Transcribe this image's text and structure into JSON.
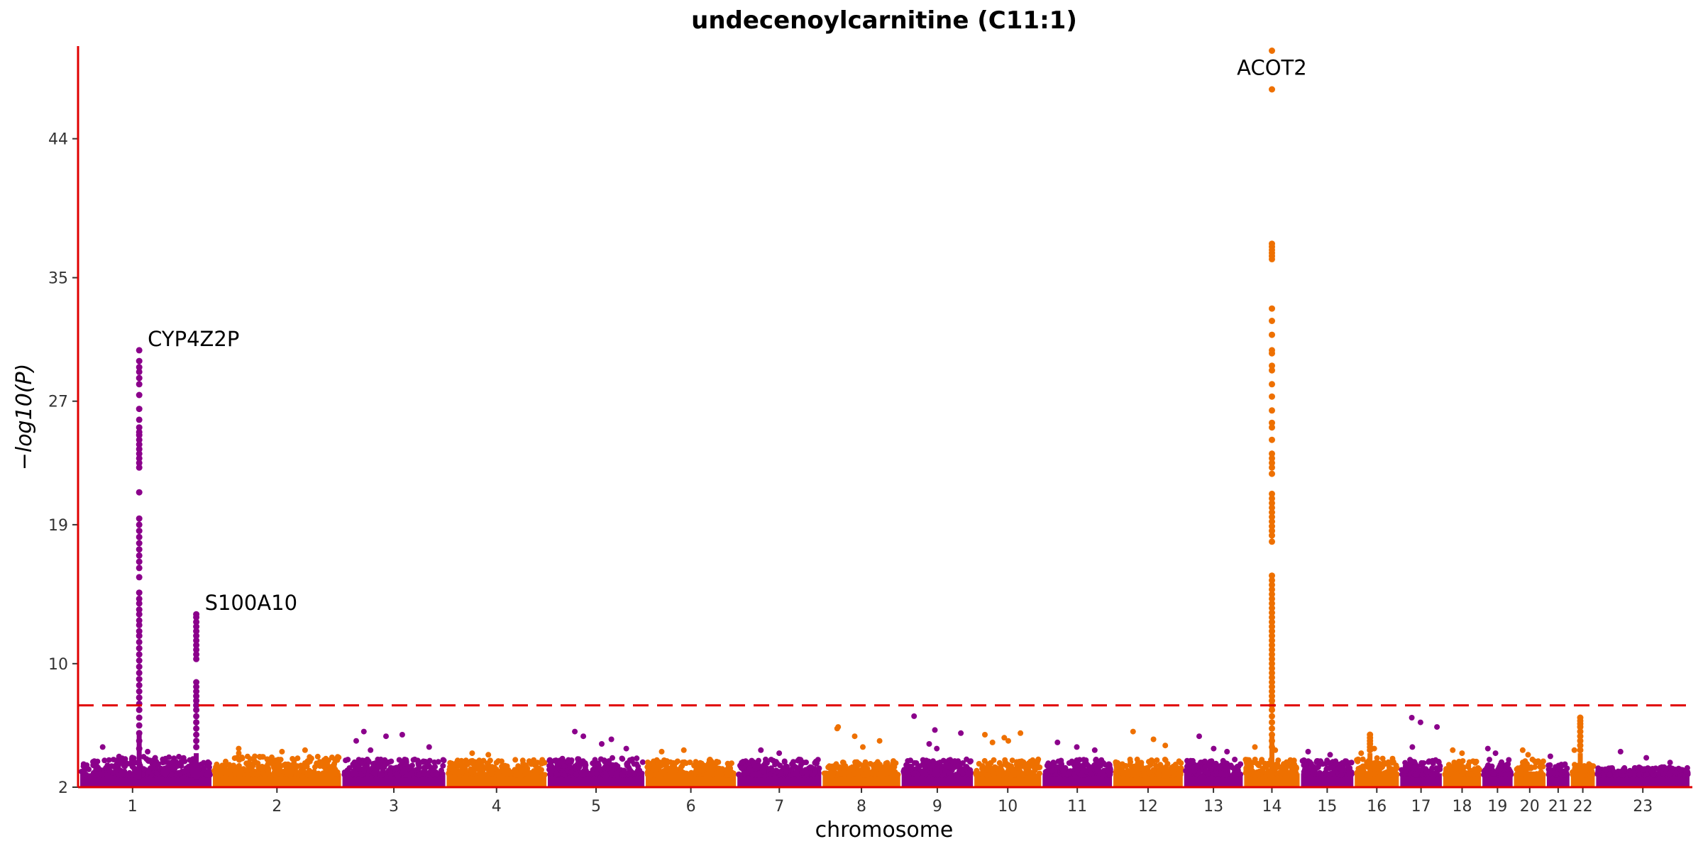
{
  "chart_data": {
    "type": "scatter",
    "title": "undecenoylcarnitine (C11:1)",
    "xlabel": "chromosome",
    "ylabel": "−log10(P)",
    "ylim": [
      2,
      50
    ],
    "y_ticks": [
      2,
      10,
      19,
      27,
      35,
      44
    ],
    "significance_line": 7.3,
    "colors": {
      "odd": "#8B008B",
      "even": "#EE7000",
      "axis": "#e00000",
      "threshold": "#e00000"
    },
    "chromosomes": [
      {
        "label": "1",
        "width": 210,
        "base_max": 4.0,
        "extra": [
          4.6,
          4.3
        ]
      },
      {
        "label": "2",
        "width": 205,
        "base_max": 4.0,
        "extra": [
          4.5,
          4.3,
          4.4,
          4.2
        ]
      },
      {
        "label": "3",
        "width": 165,
        "base_max": 3.8,
        "extra": [
          5.6,
          5.3,
          4.6,
          4.4,
          5.4,
          5.0
        ]
      },
      {
        "label": "4",
        "width": 160,
        "base_max": 3.8,
        "extra": [
          4.2,
          4.1
        ]
      },
      {
        "label": "5",
        "width": 155,
        "base_max": 3.9,
        "extra": [
          5.6,
          4.8,
          4.5,
          5.3,
          5.1
        ]
      },
      {
        "label": "6",
        "width": 145,
        "base_max": 3.8,
        "extra": [
          4.3,
          4.4
        ]
      },
      {
        "label": "7",
        "width": 135,
        "base_max": 3.8,
        "extra": [
          4.4,
          4.2
        ]
      },
      {
        "label": "8",
        "width": 125,
        "base_max": 3.7,
        "extra": [
          5.8,
          5.3,
          5.0,
          5.9,
          4.6
        ]
      },
      {
        "label": "9",
        "width": 115,
        "base_max": 3.8,
        "extra": [
          6.6,
          5.7,
          5.5,
          4.8,
          4.5
        ]
      },
      {
        "label": "10",
        "width": 108,
        "base_max": 3.8,
        "extra": [
          5.4,
          5.2,
          5.5,
          4.9,
          5.0
        ]
      },
      {
        "label": "11",
        "width": 112,
        "base_max": 3.8,
        "extra": [
          4.9,
          4.6,
          4.4
        ]
      },
      {
        "label": "12",
        "width": 112,
        "base_max": 3.8,
        "extra": [
          5.6,
          5.1,
          4.7
        ]
      },
      {
        "label": "13",
        "width": 95,
        "base_max": 3.8,
        "extra": [
          5.3,
          4.5,
          4.3
        ]
      },
      {
        "label": "14",
        "width": 90,
        "base_max": 3.8,
        "extra": [
          4.6,
          4.4
        ]
      },
      {
        "label": "15",
        "width": 85,
        "base_max": 3.8,
        "extra": [
          4.3,
          4.1
        ]
      },
      {
        "label": "16",
        "width": 72,
        "base_max": 3.9,
        "extra": [
          4.2,
          4.5
        ]
      },
      {
        "label": "17",
        "width": 68,
        "base_max": 3.8,
        "extra": [
          6.5,
          6.2,
          5.9,
          4.6
        ]
      },
      {
        "label": "18",
        "width": 62,
        "base_max": 3.7,
        "extra": [
          4.4,
          4.2
        ]
      },
      {
        "label": "19",
        "width": 50,
        "base_max": 3.8,
        "extra": [
          4.5,
          4.2
        ]
      },
      {
        "label": "20",
        "width": 52,
        "base_max": 3.8,
        "extra": [
          4.4,
          4.1
        ]
      },
      {
        "label": "21",
        "width": 38,
        "base_max": 3.5,
        "extra": [
          4.0
        ]
      },
      {
        "label": "22",
        "width": 40,
        "base_max": 3.6,
        "extra": [
          4.4
        ]
      },
      {
        "label": "23",
        "width": 150,
        "base_max": 3.3,
        "extra": [
          4.3,
          3.9,
          3.6
        ]
      }
    ],
    "peaks": [
      {
        "label": "CYP4Z2P",
        "chromosome": "1",
        "pos": 0.45,
        "values": [
          30.3,
          29.6,
          29.2,
          28.9,
          28.5,
          28.1,
          27.4,
          26.5,
          25.8,
          25.3,
          25.0,
          24.8,
          24.5,
          24.2,
          23.9,
          23.6,
          23.3,
          23.0,
          22.7,
          21.1,
          19.4,
          19.0,
          18.6,
          18.2,
          17.8,
          17.4,
          17.0,
          16.6,
          16.2,
          15.6,
          14.6,
          14.2,
          13.9,
          13.5,
          13.2,
          12.8,
          12.5,
          12.1,
          11.8,
          11.4,
          11.0,
          10.6,
          10.2,
          9.8,
          9.4,
          9.0,
          8.6,
          8.2,
          7.8,
          7.4,
          7.0,
          6.5,
          6.0,
          5.5,
          5.0,
          4.5
        ]
      },
      {
        "label": "S100A10",
        "chromosome": "1",
        "pos": 0.88,
        "values": [
          13.2,
          13.0,
          12.7,
          12.4,
          12.1,
          11.8,
          11.5,
          11.2,
          10.9,
          10.6,
          10.3,
          8.8,
          8.5,
          8.2,
          7.9,
          7.6,
          7.3,
          7.0,
          6.6,
          6.2,
          5.8,
          5.4,
          5.0,
          4.6
        ]
      },
      {
        "label": "ACOT2",
        "chromosome": "14",
        "pos": 0.5,
        "values": [
          49.7,
          47.2,
          37.2,
          37.0,
          36.8,
          36.6,
          36.4,
          36.2,
          33.0,
          32.2,
          31.3,
          30.3,
          30.1,
          29.3,
          29.0,
          28.1,
          27.3,
          26.4,
          25.6,
          25.3,
          24.5,
          23.6,
          23.3,
          23.0,
          22.7,
          22.3,
          21.0,
          20.7,
          20.4,
          20.1,
          19.8,
          19.5,
          19.2,
          18.9,
          18.6,
          18.3,
          17.9,
          15.7,
          15.4,
          15.1,
          14.8,
          14.5,
          14.2,
          13.9,
          13.6,
          13.3,
          13.0,
          12.7,
          12.4,
          12.1,
          11.8,
          11.5,
          11.2,
          10.9,
          10.6,
          10.3,
          10.0,
          9.7,
          9.4,
          9.1,
          8.8,
          8.5,
          8.2,
          7.9,
          7.6,
          7.3,
          7.0,
          6.6,
          6.2,
          5.8,
          5.4,
          5.0,
          4.6
        ]
      },
      {
        "label": "",
        "chromosome": "16",
        "pos": 0.35,
        "values": [
          5.4,
          5.2,
          5.0,
          4.8,
          4.6,
          4.4
        ]
      },
      {
        "label": "",
        "chromosome": "22",
        "pos": 0.4,
        "values": [
          6.5,
          6.3,
          6.1,
          5.9,
          5.6,
          5.3,
          5.0,
          4.7,
          4.4
        ]
      }
    ]
  }
}
